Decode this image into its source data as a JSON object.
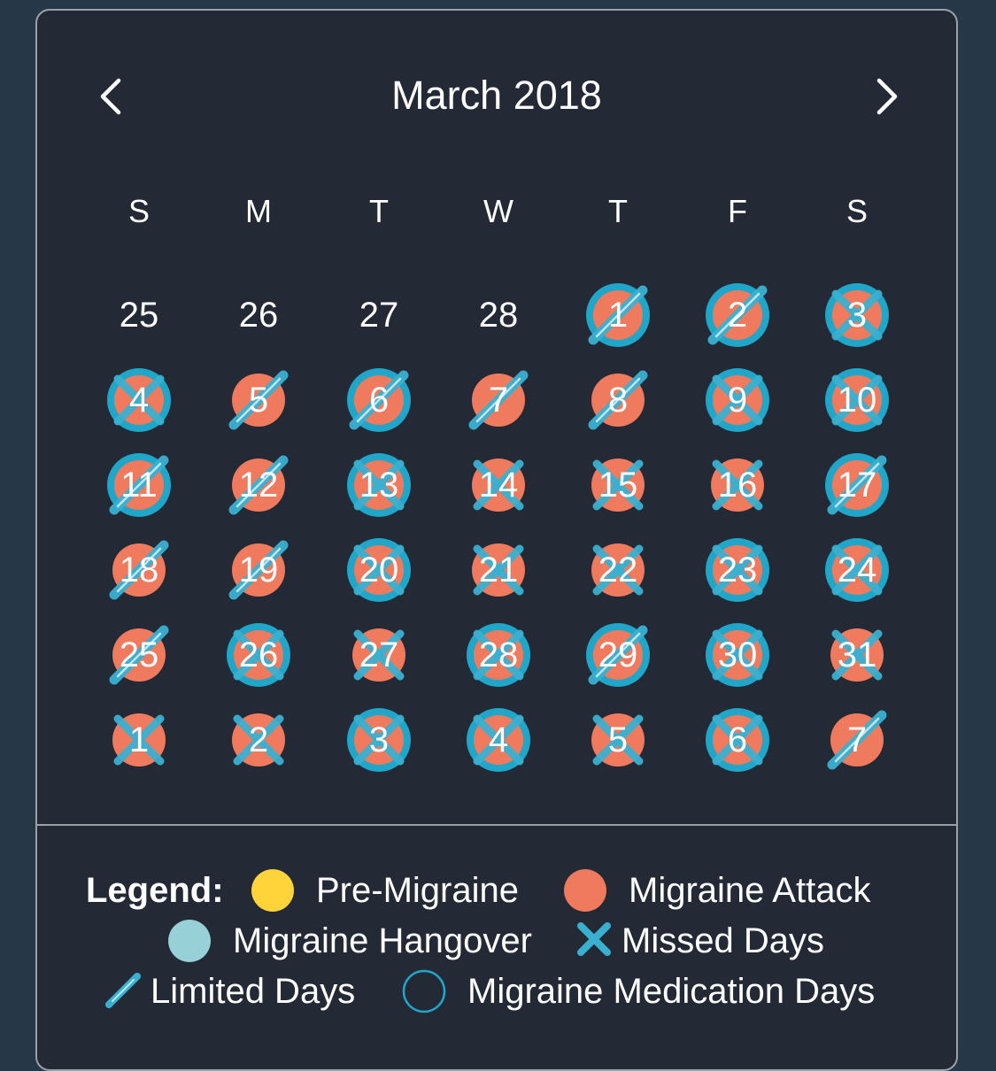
{
  "header": {
    "title": "March 2018",
    "prev_icon": "chevron-left-icon",
    "next_icon": "chevron-right-icon"
  },
  "weekdays": [
    "S",
    "M",
    "T",
    "W",
    "T",
    "F",
    "S"
  ],
  "colors": {
    "background": "#263847",
    "card": "#232a36",
    "pre_migraine": "#ffd43b",
    "migraine_attack": "#f07a5d",
    "migraine_hangover": "#97d0d6",
    "missed_mark": "#3ab0d0",
    "medication_ring": "#1fa6c8"
  },
  "weeks": [
    [
      {
        "label": "25",
        "attack": false,
        "medication": false,
        "mark": "none"
      },
      {
        "label": "26",
        "attack": false,
        "medication": false,
        "mark": "none"
      },
      {
        "label": "27",
        "attack": false,
        "medication": false,
        "mark": "none"
      },
      {
        "label": "28",
        "attack": false,
        "medication": false,
        "mark": "none"
      },
      {
        "label": "1",
        "attack": true,
        "medication": true,
        "mark": "limited"
      },
      {
        "label": "2",
        "attack": true,
        "medication": true,
        "mark": "limited"
      },
      {
        "label": "3",
        "attack": true,
        "medication": true,
        "mark": "missed"
      }
    ],
    [
      {
        "label": "4",
        "attack": true,
        "medication": true,
        "mark": "missed"
      },
      {
        "label": "5",
        "attack": true,
        "medication": false,
        "mark": "limited"
      },
      {
        "label": "6",
        "attack": true,
        "medication": true,
        "mark": "limited"
      },
      {
        "label": "7",
        "attack": true,
        "medication": false,
        "mark": "limited"
      },
      {
        "label": "8",
        "attack": true,
        "medication": false,
        "mark": "limited"
      },
      {
        "label": "9",
        "attack": true,
        "medication": true,
        "mark": "missed"
      },
      {
        "label": "10",
        "attack": true,
        "medication": true,
        "mark": "missed"
      }
    ],
    [
      {
        "label": "11",
        "attack": true,
        "medication": true,
        "mark": "limited"
      },
      {
        "label": "12",
        "attack": true,
        "medication": false,
        "mark": "limited"
      },
      {
        "label": "13",
        "attack": true,
        "medication": true,
        "mark": "missed"
      },
      {
        "label": "14",
        "attack": true,
        "medication": false,
        "mark": "missed"
      },
      {
        "label": "15",
        "attack": true,
        "medication": false,
        "mark": "missed"
      },
      {
        "label": "16",
        "attack": true,
        "medication": false,
        "mark": "missed"
      },
      {
        "label": "17",
        "attack": true,
        "medication": true,
        "mark": "limited"
      }
    ],
    [
      {
        "label": "18",
        "attack": true,
        "medication": false,
        "mark": "limited"
      },
      {
        "label": "19",
        "attack": true,
        "medication": false,
        "mark": "limited"
      },
      {
        "label": "20",
        "attack": true,
        "medication": true,
        "mark": "missed"
      },
      {
        "label": "21",
        "attack": true,
        "medication": false,
        "mark": "missed"
      },
      {
        "label": "22",
        "attack": true,
        "medication": false,
        "mark": "missed"
      },
      {
        "label": "23",
        "attack": true,
        "medication": true,
        "mark": "missed"
      },
      {
        "label": "24",
        "attack": true,
        "medication": true,
        "mark": "missed"
      }
    ],
    [
      {
        "label": "25",
        "attack": true,
        "medication": false,
        "mark": "limited"
      },
      {
        "label": "26",
        "attack": true,
        "medication": true,
        "mark": "missed"
      },
      {
        "label": "27",
        "attack": true,
        "medication": false,
        "mark": "missed"
      },
      {
        "label": "28",
        "attack": true,
        "medication": true,
        "mark": "missed"
      },
      {
        "label": "29",
        "attack": true,
        "medication": true,
        "mark": "limited"
      },
      {
        "label": "30",
        "attack": true,
        "medication": true,
        "mark": "missed"
      },
      {
        "label": "31",
        "attack": true,
        "medication": false,
        "mark": "missed"
      }
    ],
    [
      {
        "label": "1",
        "attack": true,
        "medication": false,
        "mark": "missed"
      },
      {
        "label": "2",
        "attack": true,
        "medication": false,
        "mark": "missed"
      },
      {
        "label": "3",
        "attack": true,
        "medication": true,
        "mark": "missed"
      },
      {
        "label": "4",
        "attack": true,
        "medication": true,
        "mark": "missed"
      },
      {
        "label": "5",
        "attack": true,
        "medication": false,
        "mark": "missed"
      },
      {
        "label": "6",
        "attack": true,
        "medication": true,
        "mark": "missed"
      },
      {
        "label": "7",
        "attack": true,
        "medication": false,
        "mark": "limited"
      }
    ]
  ],
  "legend": {
    "title": "Legend:",
    "pre_migraine": "Pre-Migraine",
    "migraine_attack": "Migraine Attack",
    "migraine_hangover": "Migraine Hangover",
    "missed_days": "Missed Days",
    "limited_days": "Limited Days",
    "medication_days": "Migraine Medication Days"
  }
}
